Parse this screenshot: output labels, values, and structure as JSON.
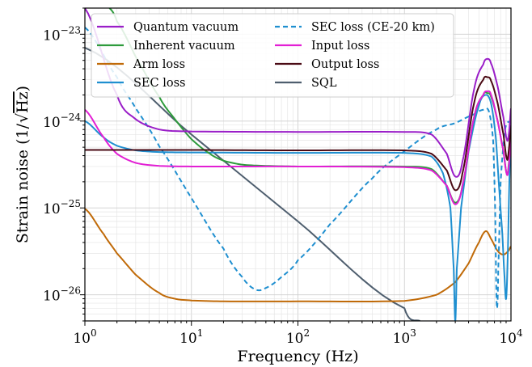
{
  "chart_data": {
    "type": "line",
    "xlabel": "Frequency (Hz)",
    "ylabel_prefix": "Strain noise (1/",
    "ylabel_radicand": "Hz",
    "ylabel_suffix": ")",
    "xscale": "log",
    "yscale": "log",
    "xlim": [
      1,
      10000
    ],
    "ylim": [
      5e-27,
      2e-23
    ],
    "grid": true,
    "legend_placement": "top-left",
    "x_ticks": [
      {
        "value": 1,
        "base": "10",
        "exp": "0"
      },
      {
        "value": 10,
        "base": "10",
        "exp": "1"
      },
      {
        "value": 100,
        "base": "10",
        "exp": "2"
      },
      {
        "value": 1000,
        "base": "10",
        "exp": "3"
      },
      {
        "value": 10000,
        "base": "10",
        "exp": "4"
      }
    ],
    "y_ticks": [
      {
        "value": 1e-26,
        "base": "10",
        "exp": "−26"
      },
      {
        "value": 1e-25,
        "base": "10",
        "exp": "−25"
      },
      {
        "value": 1e-24,
        "base": "10",
        "exp": "−24"
      },
      {
        "value": 1e-23,
        "base": "10",
        "exp": "−23"
      }
    ],
    "series": [
      {
        "name": "Quantum vacuum",
        "color": "#9a1ec8",
        "dash": "solid",
        "points": [
          [
            1,
            2e-23
          ],
          [
            2,
            2e-24
          ],
          [
            3,
            1.05e-24
          ],
          [
            5,
            8e-25
          ],
          [
            10,
            7.6e-25
          ],
          [
            100,
            7.5e-25
          ],
          [
            1000,
            7.5e-25
          ],
          [
            1800,
            7e-25
          ],
          [
            2500,
            4.2e-25
          ],
          [
            3000,
            2.3e-25
          ],
          [
            3500,
            3.4e-25
          ],
          [
            4500,
            2.3e-24
          ],
          [
            5500,
            4.5e-24
          ],
          [
            6000,
            5.2e-24
          ],
          [
            6500,
            4.6e-24
          ],
          [
            7500,
            2.5e-24
          ],
          [
            8500,
            1.1e-24
          ],
          [
            9200,
            6e-25
          ],
          [
            9600,
            7.5e-25
          ],
          [
            10000,
            1.4e-24
          ]
        ]
      },
      {
        "name": "Inherent vacuum",
        "color": "#2e9b3c",
        "dash": "solid",
        "points": [
          [
            1.7,
            2e-23
          ],
          [
            2,
            1.4e-23
          ],
          [
            3,
            5.5e-24
          ],
          [
            5,
            1.9e-24
          ],
          [
            7,
            1.05e-24
          ],
          [
            10,
            6.2e-25
          ],
          [
            15,
            4.2e-25
          ],
          [
            20,
            3.5e-25
          ],
          [
            30,
            3.15e-25
          ],
          [
            50,
            3.05e-25
          ],
          [
            100,
            3e-25
          ],
          [
            1000,
            3e-25
          ],
          [
            1800,
            2.8e-25
          ],
          [
            2500,
            1.8e-25
          ],
          [
            3000,
            1.15e-25
          ],
          [
            3500,
            1.8e-25
          ],
          [
            4500,
            1.1e-24
          ],
          [
            5500,
            2e-24
          ],
          [
            6000,
            2.1e-24
          ],
          [
            6500,
            1.9e-24
          ],
          [
            7500,
            1e-24
          ],
          [
            8500,
            4.5e-25
          ],
          [
            9200,
            2.4e-25
          ],
          [
            9600,
            3.5e-25
          ],
          [
            10000,
            6e-25
          ]
        ]
      },
      {
        "name": "Arm loss",
        "color": "#c06a08",
        "dash": "solid",
        "points": [
          [
            1,
            9.8e-26
          ],
          [
            1.5,
            5e-26
          ],
          [
            2,
            3e-26
          ],
          [
            3,
            1.7e-26
          ],
          [
            5,
            1.05e-26
          ],
          [
            7,
            9e-27
          ],
          [
            10,
            8.6e-27
          ],
          [
            20,
            8.4e-27
          ],
          [
            100,
            8.4e-27
          ],
          [
            1000,
            8.5e-27
          ],
          [
            2000,
            1e-26
          ],
          [
            3000,
            1.4e-26
          ],
          [
            4000,
            2.3e-26
          ],
          [
            5000,
            4e-26
          ],
          [
            5800,
            5.4e-26
          ],
          [
            6500,
            4.4e-26
          ],
          [
            7500,
            3.2e-26
          ],
          [
            8500,
            2.9e-26
          ],
          [
            9500,
            3.2e-26
          ],
          [
            10000,
            3.6e-26
          ]
        ]
      },
      {
        "name": "SEC loss",
        "color": "#1f8fd0",
        "dash": "solid",
        "points": [
          [
            1,
            1e-24
          ],
          [
            1.5,
            6.5e-25
          ],
          [
            2,
            5.2e-25
          ],
          [
            3,
            4.6e-25
          ],
          [
            5,
            4.4e-25
          ],
          [
            10,
            4.35e-25
          ],
          [
            100,
            4.3e-25
          ],
          [
            1000,
            4.3e-25
          ],
          [
            1800,
            3.9e-25
          ],
          [
            2300,
            2.5e-25
          ],
          [
            2700,
            1e-25
          ],
          [
            2900,
            2e-26
          ],
          [
            3000,
            5e-27
          ],
          [
            3100,
            2e-26
          ],
          [
            3400,
            1e-25
          ],
          [
            4000,
            4.5e-25
          ],
          [
            5000,
            1.5e-24
          ],
          [
            5800,
            2e-24
          ],
          [
            6500,
            1.6e-24
          ],
          [
            7200,
            6.5e-25
          ],
          [
            7800,
            1.5e-25
          ],
          [
            8300,
            5e-26
          ],
          [
            8700,
            1.6e-26
          ],
          [
            9000,
            9e-27
          ],
          [
            9300,
            2.5e-26
          ],
          [
            9700,
            2.5e-25
          ],
          [
            10000,
            5.5e-25
          ]
        ]
      },
      {
        "name": "SEC loss (CE-20 km)",
        "color": "#1f8fd0",
        "dash": "dashed",
        "points": [
          [
            1,
            1.2e-23
          ],
          [
            2,
            3.2e-24
          ],
          [
            3,
            1.4e-24
          ],
          [
            5,
            5.1e-25
          ],
          [
            10,
            1.3e-25
          ],
          [
            20,
            3.4e-26
          ],
          [
            30,
            1.6e-26
          ],
          [
            40,
            1.15e-26
          ],
          [
            50,
            1.2e-26
          ],
          [
            70,
            1.6e-26
          ],
          [
            100,
            2.5e-26
          ],
          [
            200,
            6.5e-26
          ],
          [
            500,
            2.2e-25
          ],
          [
            1000,
            4.5e-25
          ],
          [
            2000,
            8e-25
          ],
          [
            3000,
            9.5e-25
          ],
          [
            4500,
            1.2e-24
          ],
          [
            5500,
            1.35e-24
          ],
          [
            6200,
            1.3e-24
          ],
          [
            6800,
            6e-25
          ],
          [
            7100,
            1e-25
          ],
          [
            7300,
            1e-26
          ],
          [
            7450,
            7.5e-27
          ],
          [
            7600,
            2e-26
          ],
          [
            8000,
            2e-25
          ],
          [
            8800,
            8e-25
          ],
          [
            10000,
            1e-24
          ]
        ]
      },
      {
        "name": "Input loss",
        "color": "#e21fd4",
        "dash": "solid",
        "points": [
          [
            1,
            1.35e-24
          ],
          [
            1.5,
            6.5e-25
          ],
          [
            2,
            4.2e-25
          ],
          [
            3,
            3.3e-25
          ],
          [
            5,
            3.05e-25
          ],
          [
            10,
            3e-25
          ],
          [
            100,
            3e-25
          ],
          [
            1000,
            2.95e-25
          ],
          [
            1800,
            2.7e-25
          ],
          [
            2500,
            1.8e-25
          ],
          [
            3000,
            1.1e-25
          ],
          [
            3500,
            1.8e-25
          ],
          [
            4500,
            1.1e-24
          ],
          [
            5500,
            2e-24
          ],
          [
            6000,
            2.2e-24
          ],
          [
            6500,
            2e-24
          ],
          [
            7500,
            1e-24
          ],
          [
            8500,
            4.5e-25
          ],
          [
            9200,
            2.4e-25
          ],
          [
            9600,
            3.3e-25
          ],
          [
            10000,
            6e-25
          ]
        ]
      },
      {
        "name": "Output loss",
        "color": "#4a0a14",
        "dash": "solid",
        "points": [
          [
            1,
            4.65e-25
          ],
          [
            10,
            4.65e-25
          ],
          [
            100,
            4.6e-25
          ],
          [
            1000,
            4.6e-25
          ],
          [
            1800,
            4.2e-25
          ],
          [
            2500,
            2.7e-25
          ],
          [
            3000,
            1.6e-25
          ],
          [
            3500,
            2.5e-25
          ],
          [
            4500,
            1.6e-24
          ],
          [
            5500,
            3e-24
          ],
          [
            6000,
            3.2e-24
          ],
          [
            6500,
            2.9e-24
          ],
          [
            7500,
            1.6e-24
          ],
          [
            8500,
            7e-25
          ],
          [
            9200,
            3.6e-25
          ],
          [
            9600,
            5e-25
          ],
          [
            10000,
            9e-25
          ]
        ]
      },
      {
        "name": "SQL",
        "color": "#4e5e6e",
        "dash": "solid",
        "points": [
          [
            1,
            7e-24
          ],
          [
            10,
            7e-25
          ],
          [
            100,
            7e-26
          ],
          [
            1000,
            7e-27
          ],
          [
            1400,
            5e-27
          ]
        ]
      }
    ]
  }
}
